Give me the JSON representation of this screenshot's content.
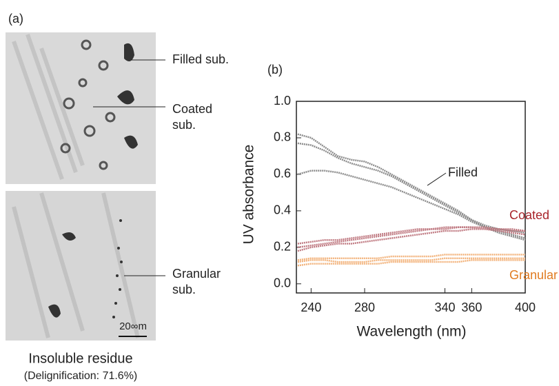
{
  "panel_a": {
    "label": "(a)",
    "annotations": [
      "Filled sub.",
      "Coated",
      "sub.",
      "Granular",
      "sub."
    ],
    "scale_bar": "20∞m",
    "caption": "Insoluble residue",
    "subcaption": "(Delignification: 71.6%)"
  },
  "chart_data": {
    "type": "line",
    "panel_label": "(b)",
    "x_label": "Wavelength (nm)",
    "y_label": "UV absorbance",
    "x": [
      230,
      240,
      250,
      260,
      270,
      280,
      290,
      300,
      310,
      320,
      330,
      340,
      350,
      360,
      370,
      380,
      390,
      400
    ],
    "series": [
      {
        "name": "Filled",
        "color": "#8c8c8c",
        "label_color": "#222222",
        "curves": [
          [
            0.82,
            0.8,
            0.75,
            0.7,
            0.68,
            0.67,
            0.64,
            0.6,
            0.56,
            0.52,
            0.48,
            0.44,
            0.4,
            0.35,
            0.31,
            0.29,
            0.27,
            0.25
          ],
          [
            0.77,
            0.76,
            0.73,
            0.69,
            0.66,
            0.64,
            0.62,
            0.59,
            0.55,
            0.51,
            0.47,
            0.43,
            0.39,
            0.35,
            0.32,
            0.3,
            0.29,
            0.28
          ],
          [
            0.6,
            0.62,
            0.62,
            0.61,
            0.59,
            0.57,
            0.55,
            0.53,
            0.5,
            0.47,
            0.44,
            0.41,
            0.38,
            0.34,
            0.31,
            0.28,
            0.26,
            0.24
          ]
        ]
      },
      {
        "name": "Coated",
        "color": "#c07a82",
        "label_color": "#a8242a",
        "curves": [
          [
            0.2,
            0.21,
            0.22,
            0.23,
            0.24,
            0.25,
            0.26,
            0.27,
            0.28,
            0.29,
            0.3,
            0.3,
            0.31,
            0.31,
            0.3,
            0.3,
            0.29,
            0.29
          ],
          [
            0.18,
            0.2,
            0.21,
            0.22,
            0.22,
            0.23,
            0.24,
            0.25,
            0.26,
            0.27,
            0.28,
            0.29,
            0.29,
            0.3,
            0.3,
            0.29,
            0.28,
            0.27
          ],
          [
            0.22,
            0.23,
            0.24,
            0.24,
            0.25,
            0.26,
            0.27,
            0.28,
            0.29,
            0.3,
            0.3,
            0.31,
            0.31,
            0.31,
            0.31,
            0.3,
            0.3,
            0.29
          ]
        ]
      },
      {
        "name": "Granular",
        "color": "#f2b27a",
        "label_color": "#e07b20",
        "curves": [
          [
            0.13,
            0.14,
            0.14,
            0.14,
            0.14,
            0.14,
            0.14,
            0.15,
            0.15,
            0.15,
            0.15,
            0.16,
            0.16,
            0.16,
            0.16,
            0.16,
            0.16,
            0.16
          ],
          [
            0.12,
            0.13,
            0.13,
            0.12,
            0.12,
            0.12,
            0.13,
            0.13,
            0.13,
            0.13,
            0.13,
            0.14,
            0.14,
            0.14,
            0.14,
            0.14,
            0.14,
            0.14
          ],
          [
            0.1,
            0.11,
            0.11,
            0.11,
            0.11,
            0.11,
            0.11,
            0.12,
            0.12,
            0.12,
            0.12,
            0.12,
            0.12,
            0.13,
            0.13,
            0.13,
            0.13,
            0.13
          ]
        ]
      }
    ],
    "xlim": [
      229,
      400
    ],
    "ylim": [
      -0.05,
      1.0
    ],
    "xticks": [
      240,
      280,
      340,
      360,
      400
    ],
    "yticks": [
      {
        "value": 0,
        "label": "0.0"
      },
      0.2,
      0.4,
      0.6,
      0.8,
      {
        "value": 1,
        "label": "1.0"
      }
    ]
  }
}
